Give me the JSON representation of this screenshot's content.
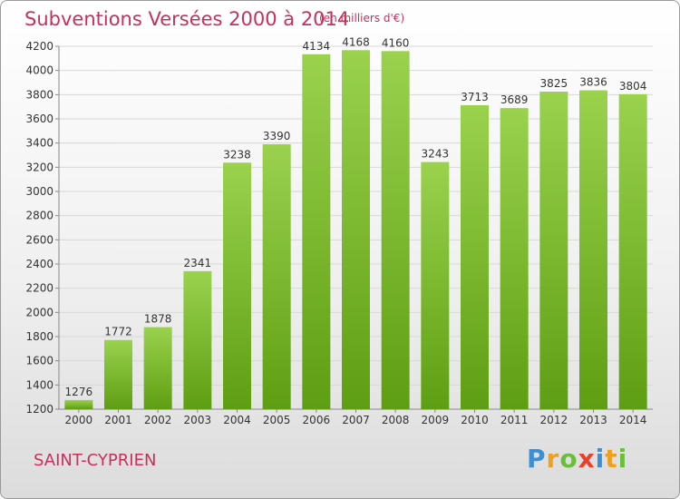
{
  "header": {
    "title": "Subventions Versées 2000 à 2014",
    "unit_note": "(en milliers d'€)"
  },
  "footer": {
    "place": "SAINT-CYPRIEN",
    "logo_text": "Proxiti"
  },
  "colors": {
    "title": "#c8305a",
    "bar_light": "#9ad24e",
    "bar_dark": "#5e9e12",
    "grid": "#d8d8d8"
  },
  "chart_data": {
    "type": "bar",
    "categories": [
      "2000",
      "2001",
      "2002",
      "2003",
      "2004",
      "2005",
      "2006",
      "2007",
      "2008",
      "2009",
      "2010",
      "2011",
      "2012",
      "2013",
      "2014"
    ],
    "values": [
      1276,
      1772,
      1878,
      2341,
      3238,
      3390,
      4134,
      4168,
      4160,
      3243,
      3713,
      3689,
      3825,
      3836,
      3804
    ],
    "yticks": [
      1200,
      1400,
      1600,
      1800,
      2000,
      2200,
      2400,
      2600,
      2800,
      3000,
      3200,
      3400,
      3600,
      3800,
      4000,
      4200
    ],
    "ylim": [
      1200,
      4200
    ],
    "grid": true,
    "title": "Subventions Versées 2000 à 2014",
    "xlabel": "",
    "ylabel": ""
  }
}
